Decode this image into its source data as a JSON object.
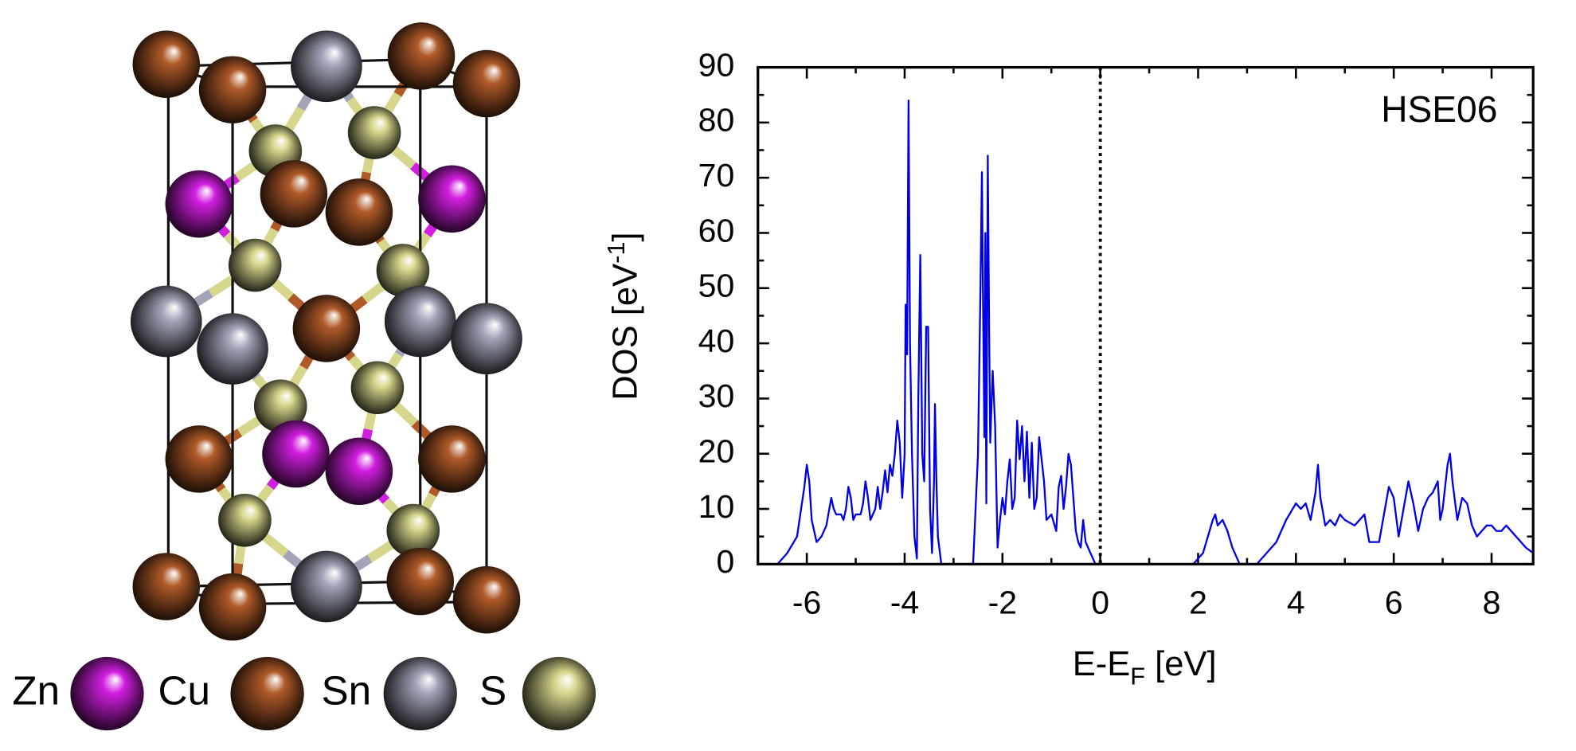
{
  "chart_data": {
    "type": "line",
    "annotation": "HSE06",
    "xlabel": [
      "E-E",
      "F",
      " [eV]"
    ],
    "ylabel": [
      "DOS [eV",
      "-1",
      "]"
    ],
    "xlim": [
      -7,
      8.85
    ],
    "ylim": [
      0,
      90
    ],
    "xticks": [
      -6,
      -4,
      -2,
      0,
      2,
      4,
      6,
      8
    ],
    "yticks": [
      0,
      10,
      20,
      30,
      40,
      50,
      60,
      70,
      80,
      90
    ],
    "xminorticks": [
      -7,
      -5,
      -3,
      -1,
      1,
      3,
      5,
      7
    ],
    "yminorticks": [
      5,
      15,
      25,
      35,
      45,
      55,
      65,
      75,
      85
    ],
    "fermi_level": 0,
    "series": [
      {
        "color": "#0000e6",
        "x": [
          -6.6,
          -6.4,
          -6.2,
          -6.05,
          -6.0,
          -5.95,
          -5.9,
          -5.8,
          -5.7,
          -5.6,
          -5.5,
          -5.45,
          -5.4,
          -5.3,
          -5.25,
          -5.2,
          -5.15,
          -5.1,
          -5.05,
          -5.0,
          -4.9,
          -4.85,
          -4.8,
          -4.75,
          -4.7,
          -4.6,
          -4.55,
          -4.5,
          -4.45,
          -4.4,
          -4.35,
          -4.3,
          -4.25,
          -4.2,
          -4.15,
          -4.1,
          -4.05,
          -4.0,
          -3.98,
          -3.95,
          -3.92,
          -3.89,
          -3.85,
          -3.8,
          -3.75,
          -3.72,
          -3.68,
          -3.64,
          -3.6,
          -3.56,
          -3.52,
          -3.48,
          -3.44,
          -3.4,
          -3.38,
          -3.35,
          -3.32,
          -3.25,
          -2.6,
          -2.5,
          -2.45,
          -2.42,
          -2.4,
          -2.37,
          -2.35,
          -2.33,
          -2.3,
          -2.27,
          -2.25,
          -2.22,
          -2.2,
          -2.15,
          -2.1,
          -2.05,
          -2.0,
          -1.95,
          -1.9,
          -1.85,
          -1.8,
          -1.75,
          -1.7,
          -1.65,
          -1.6,
          -1.55,
          -1.5,
          -1.45,
          -1.4,
          -1.35,
          -1.3,
          -1.25,
          -1.2,
          -1.15,
          -1.1,
          -1.0,
          -0.9,
          -0.85,
          -0.8,
          -0.75,
          -0.7,
          -0.65,
          -0.6,
          -0.5,
          -0.45,
          -0.4,
          -0.35,
          -0.3,
          -0.2,
          -0.1,
          1.9,
          2.1,
          2.2,
          2.3,
          2.35,
          2.4,
          2.5,
          2.6,
          2.7,
          2.85,
          3.2,
          3.4,
          3.6,
          3.8,
          4.0,
          4.1,
          4.2,
          4.3,
          4.4,
          4.45,
          4.5,
          4.6,
          4.7,
          4.8,
          4.9,
          5.0,
          5.2,
          5.4,
          5.5,
          5.7,
          5.8,
          5.9,
          6.0,
          6.1,
          6.2,
          6.3,
          6.4,
          6.5,
          6.6,
          6.7,
          6.8,
          6.9,
          6.95,
          7.0,
          7.1,
          7.15,
          7.2,
          7.3,
          7.4,
          7.5,
          7.6,
          7.7,
          7.8,
          7.9,
          8.0,
          8.1,
          8.2,
          8.3,
          8.5,
          8.7,
          8.85
        ],
        "values": [
          0,
          2,
          5,
          14,
          18,
          15,
          8,
          4,
          5,
          7,
          12,
          10,
          9,
          9,
          8,
          10,
          14,
          12,
          8,
          9,
          9,
          11,
          15,
          12,
          8,
          10,
          14,
          10,
          13,
          17,
          13,
          18,
          16,
          20,
          26,
          22,
          12,
          20,
          47,
          38,
          84,
          40,
          20,
          5,
          1,
          30,
          56,
          20,
          15,
          43,
          43,
          10,
          2,
          15,
          29,
          15,
          5,
          0,
          0,
          20,
          50,
          71,
          50,
          23,
          60,
          11,
          74,
          40,
          22,
          30,
          35,
          25,
          3,
          8,
          12,
          9,
          15,
          19,
          10,
          12,
          26,
          19,
          25,
          15,
          24,
          12,
          22,
          10,
          12,
          23,
          19,
          15,
          8,
          9,
          6,
          14,
          16,
          10,
          14,
          20,
          18,
          6,
          4,
          3,
          8,
          4,
          2,
          0,
          0,
          2,
          5,
          8,
          9,
          7,
          8,
          6,
          3,
          0,
          0,
          2,
          4,
          8,
          11,
          10,
          11,
          8,
          13,
          18,
          12,
          7,
          8,
          7,
          9,
          8,
          7,
          9,
          4,
          4,
          9,
          14,
          12,
          5,
          10,
          15,
          11,
          6,
          10,
          12,
          13,
          15,
          8,
          10,
          18,
          20,
          15,
          8,
          12,
          11,
          7,
          5,
          6,
          7,
          7,
          6,
          6,
          7,
          5,
          3,
          2
        ]
      }
    ]
  },
  "structure_legend": [
    {
      "name": "Zn",
      "color": "#d21ee0"
    },
    {
      "name": "Cu",
      "color": "#b05a28"
    },
    {
      "name": "Sn",
      "color": "#a2a5b8"
    },
    {
      "name": "S",
      "color": "#d6d68c"
    }
  ]
}
